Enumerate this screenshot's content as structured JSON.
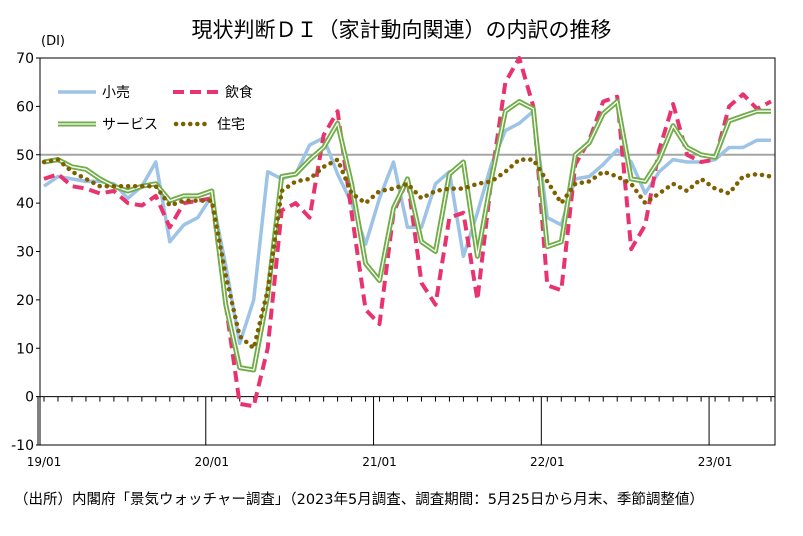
{
  "title": "現状判断ＤＩ（家計動向関連）の内訳の推移",
  "source": "（出所）内閣府「景気ウォッチャー調査」（2023年5月調査、調査期間：5月25日から月末、季節調整値）",
  "chart_data": {
    "type": "line",
    "title": "現状判断ＤＩ（家計動向関連）の内訳の推移",
    "unit_label": "(DI)",
    "ylim": [
      -10,
      70
    ],
    "yticks": [
      -10,
      0,
      10,
      20,
      30,
      40,
      50,
      60,
      70
    ],
    "reference_line": 50,
    "x": [
      "2019-01",
      "2019-02",
      "2019-03",
      "2019-04",
      "2019-05",
      "2019-06",
      "2019-07",
      "2019-08",
      "2019-09",
      "2019-10",
      "2019-11",
      "2019-12",
      "2020-01",
      "2020-02",
      "2020-03",
      "2020-04",
      "2020-05",
      "2020-06",
      "2020-07",
      "2020-08",
      "2020-09",
      "2020-10",
      "2020-11",
      "2020-12",
      "2021-01",
      "2021-02",
      "2021-03",
      "2021-04",
      "2021-05",
      "2021-06",
      "2021-07",
      "2021-08",
      "2021-09",
      "2021-10",
      "2021-11",
      "2021-12",
      "2022-01",
      "2022-02",
      "2022-03",
      "2022-04",
      "2022-05",
      "2022-06",
      "2022-07",
      "2022-08",
      "2022-09",
      "2022-10",
      "2022-11",
      "2022-12",
      "2023-01",
      "2023-02",
      "2023-03",
      "2023-04",
      "2023-05"
    ],
    "xtick_labels": [
      {
        "index": 0,
        "label": "19/01"
      },
      {
        "index": 12,
        "label": "20/01"
      },
      {
        "index": 24,
        "label": "21/01"
      },
      {
        "index": 36,
        "label": "22/01"
      },
      {
        "index": 48,
        "label": "23/01"
      }
    ],
    "series": [
      {
        "name": "小売",
        "color": "#9dc3e6",
        "style": "solid",
        "values": [
          43.5,
          45.5,
          45.0,
          44.5,
          44.5,
          44.0,
          41.0,
          43.5,
          48.5,
          32.0,
          35.5,
          37.0,
          41.5,
          27.0,
          11.0,
          20.0,
          46.5,
          45.0,
          46.0,
          52.0,
          53.5,
          46.0,
          40.0,
          31.5,
          41.0,
          48.5,
          35.0,
          35.0,
          44.0,
          46.5,
          29.0,
          38.0,
          48.0,
          55.0,
          56.5,
          59.0,
          37.0,
          35.5,
          45.0,
          45.5,
          48.0,
          51.0,
          48.5,
          42.0,
          46.5,
          49.0,
          48.5,
          48.5,
          49.0,
          51.5,
          51.5,
          53.0,
          53.0
        ]
      },
      {
        "name": "飲食",
        "color": "#e8336f",
        "style": "dashed",
        "values": [
          45.0,
          46.0,
          43.5,
          43.0,
          42.0,
          42.5,
          40.0,
          39.5,
          41.5,
          35.0,
          40.0,
          40.5,
          41.0,
          19.0,
          -1.5,
          -2.0,
          10.0,
          38.5,
          40.0,
          37.0,
          54.0,
          59.0,
          38.0,
          18.0,
          15.0,
          38.0,
          45.0,
          23.5,
          19.0,
          37.0,
          38.0,
          20.0,
          45.0,
          65.0,
          70.0,
          60.0,
          23.0,
          22.0,
          48.0,
          53.0,
          61.0,
          62.0,
          30.5,
          35.5,
          51.0,
          60.5,
          50.0,
          48.5,
          49.0,
          60.0,
          62.5,
          59.5,
          61.0
        ]
      },
      {
        "name": "サービス",
        "color": "#70ad47",
        "style": "double",
        "values": [
          48.5,
          49.0,
          47.5,
          47.0,
          45.0,
          43.5,
          42.5,
          43.5,
          44.0,
          40.5,
          41.5,
          41.5,
          42.5,
          19.0,
          6.0,
          5.5,
          21.0,
          45.5,
          46.0,
          49.0,
          51.5,
          56.5,
          44.0,
          27.5,
          24.0,
          39.0,
          45.0,
          32.0,
          30.0,
          46.0,
          48.5,
          29.0,
          45.0,
          59.0,
          61.0,
          59.5,
          31.0,
          32.0,
          50.0,
          52.5,
          58.5,
          61.0,
          45.0,
          44.5,
          49.0,
          56.0,
          51.5,
          50.0,
          49.5,
          57.0,
          58.0,
          59.0,
          59.0
        ]
      },
      {
        "name": "住宅",
        "color": "#7f6000",
        "style": "dotted",
        "values": [
          48.5,
          49.0,
          46.5,
          45.0,
          43.5,
          43.5,
          43.5,
          43.5,
          43.5,
          39.5,
          40.5,
          40.5,
          40.5,
          25.0,
          12.5,
          10.0,
          22.0,
          42.5,
          44.5,
          45.0,
          47.5,
          49.0,
          42.0,
          40.0,
          42.5,
          43.0,
          44.0,
          41.0,
          42.5,
          43.0,
          43.0,
          44.0,
          44.5,
          46.5,
          49.0,
          49.0,
          44.5,
          40.0,
          44.0,
          44.5,
          46.5,
          45.5,
          44.0,
          40.0,
          42.0,
          44.0,
          42.5,
          45.0,
          43.0,
          42.0,
          45.5,
          46.0,
          45.5
        ]
      }
    ],
    "legend": [
      {
        "name": "小売"
      },
      {
        "name": "飲食"
      },
      {
        "name": "サービス"
      },
      {
        "name": "住宅"
      }
    ]
  }
}
